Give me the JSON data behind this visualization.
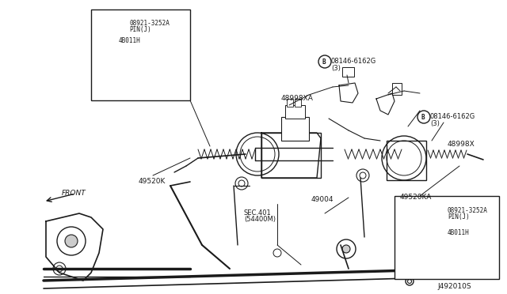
{
  "bg_color": "#f0f0f0",
  "line_color": "#1a1a1a",
  "diagram_id": "J492010S",
  "figsize": [
    6.4,
    3.72
  ],
  "dpi": 100,
  "labels": {
    "top_left_inset": {
      "part1": "08921-3252A",
      "part1b": "PIN(J)",
      "part2": "4B011H"
    },
    "top_center": {
      "bolt": "08146-6162G",
      "bolt_qty": "(3)",
      "part": "48998XA"
    },
    "top_right": {
      "bolt": "08146-6162G",
      "bolt_qty": "(3)",
      "part": "48998X"
    },
    "main": {
      "left_assy": "49520K",
      "front": "FRONT",
      "sec": "SEC.401",
      "sec2": "(54400M)",
      "rack": "49004"
    },
    "bottom_right_inset": {
      "label": "49520KA",
      "part1": "08921-3252A",
      "part1b": "PIN(J)",
      "part2": "4B011H"
    },
    "diagram_id": "J492010S"
  }
}
